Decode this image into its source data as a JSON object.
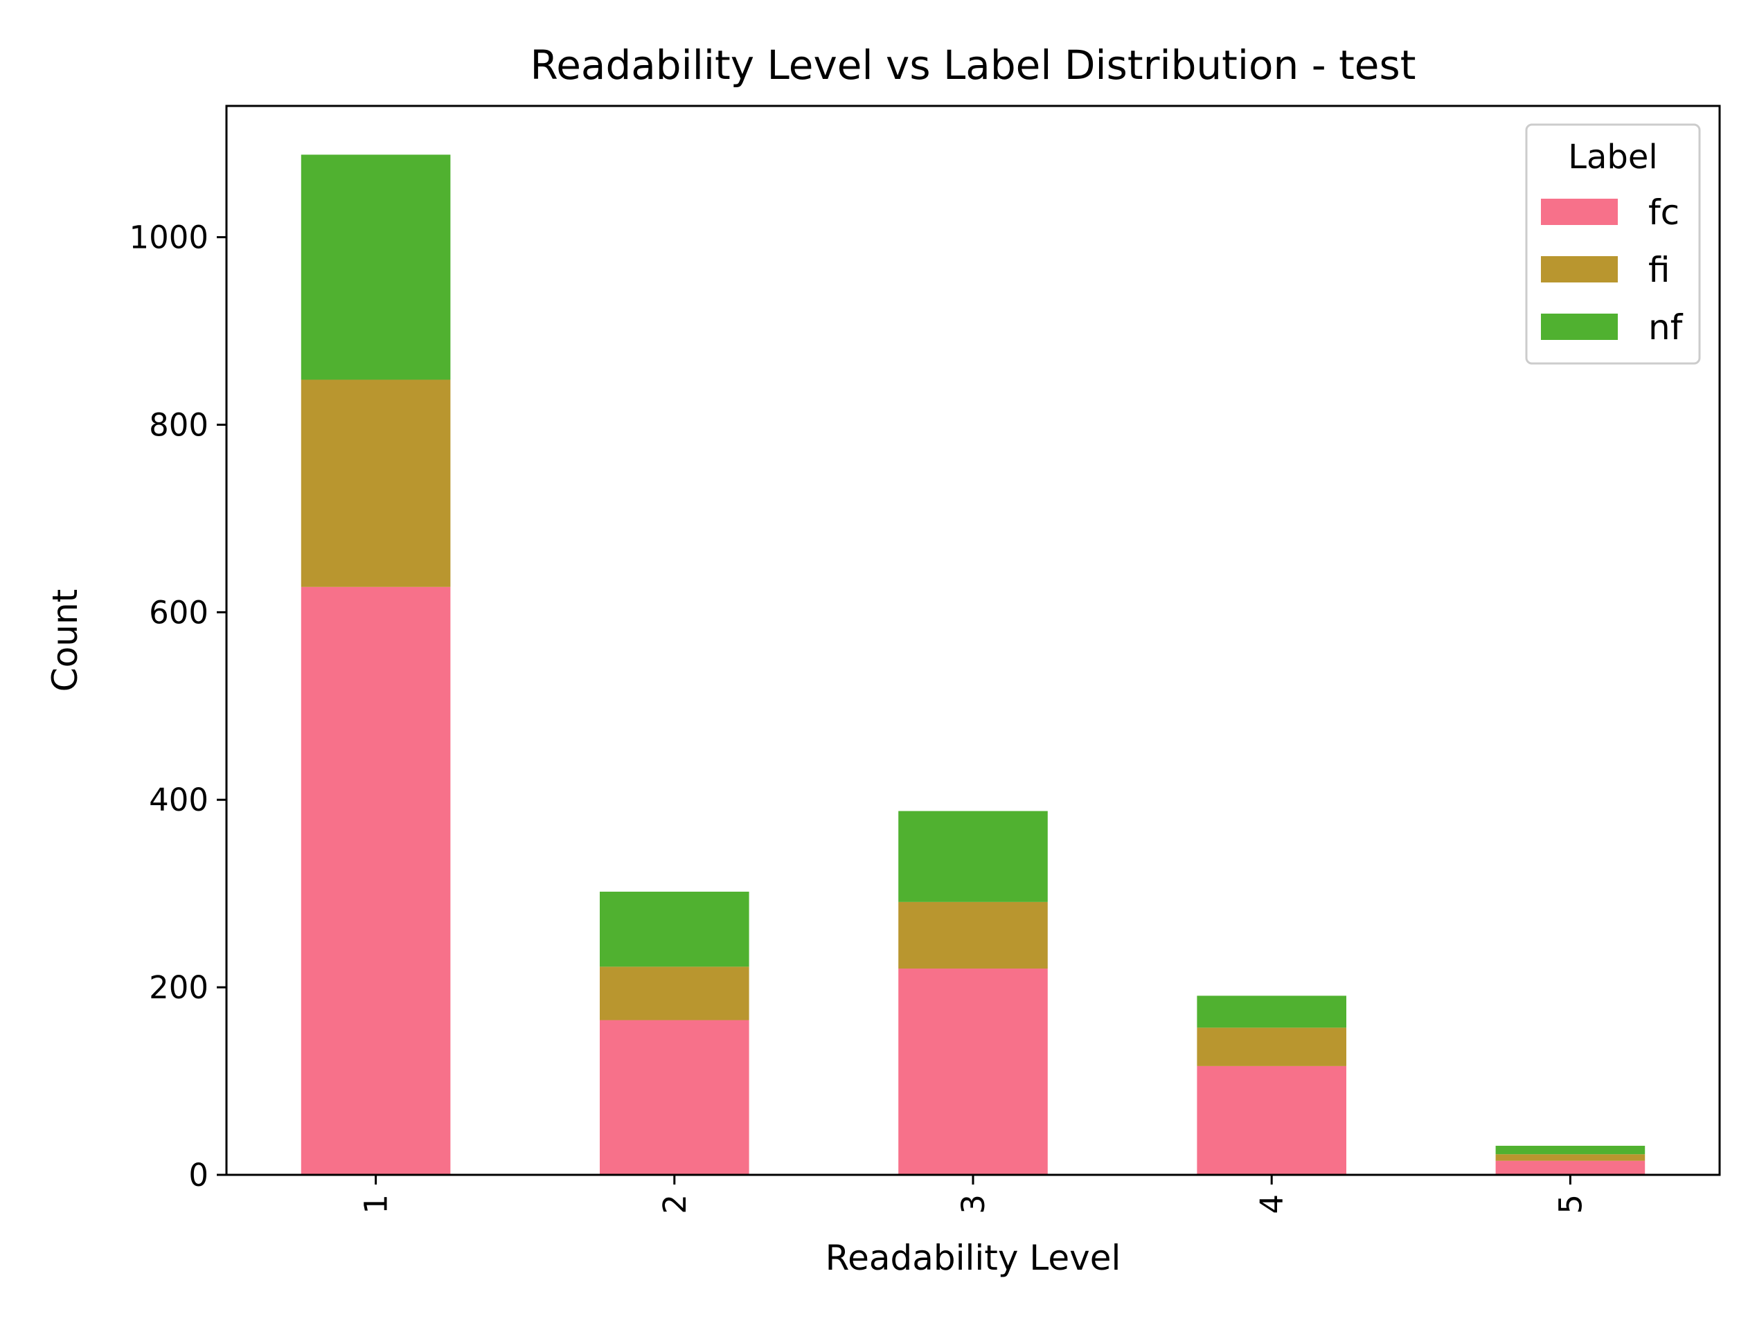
{
  "chart_data": {
    "type": "bar",
    "stacked": true,
    "title": "Readability Level vs Label Distribution - test",
    "xlabel": "Readability Level",
    "ylabel": "Count",
    "categories": [
      "1",
      "2",
      "3",
      "4",
      "5"
    ],
    "ylim": [
      0,
      1140
    ],
    "yticks": [
      0,
      200,
      400,
      600,
      800,
      1000
    ],
    "grid": false,
    "legend": {
      "title": "Label",
      "position": "top-right"
    },
    "series": [
      {
        "name": "fc",
        "color": "#f7718a",
        "values": [
          627,
          165,
          220,
          116,
          15
        ]
      },
      {
        "name": "fi",
        "color": "#b9962f",
        "values": [
          221,
          57,
          71,
          41,
          7
        ]
      },
      {
        "name": "nf",
        "color": "#50b130",
        "values": [
          240,
          80,
          97,
          34,
          9
        ]
      }
    ]
  }
}
